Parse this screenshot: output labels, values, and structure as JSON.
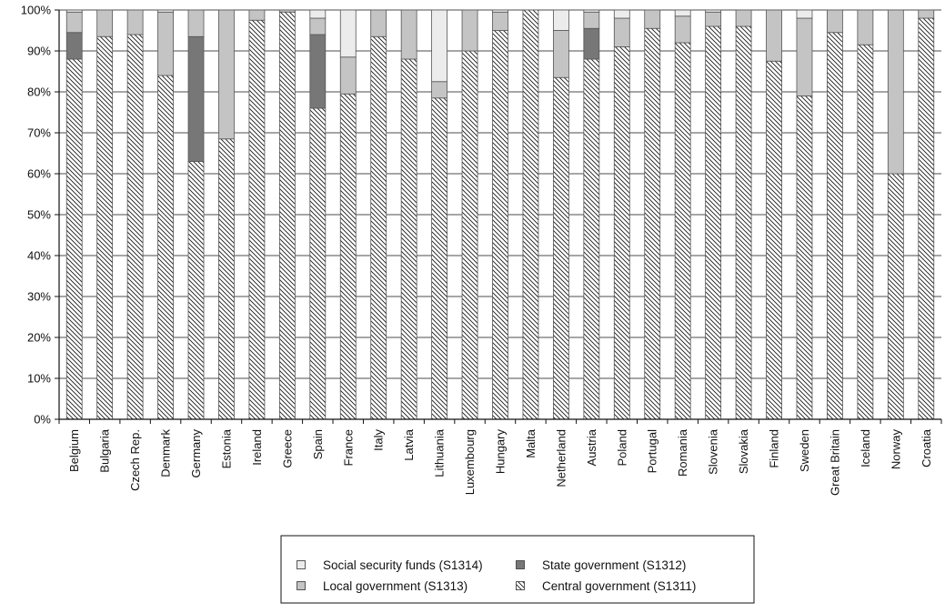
{
  "chart_data": {
    "type": "bar",
    "stacked": true,
    "percent": true,
    "ylim": [
      0,
      100
    ],
    "yticks": [
      "0%",
      "10%",
      "20%",
      "30%",
      "40%",
      "50%",
      "60%",
      "70%",
      "80%",
      "90%",
      "100%"
    ],
    "grid": true,
    "legend_position": "bottom",
    "categories": [
      "Belgium",
      "Bulgaria",
      "Czech Rep.",
      "Denmark",
      "Germany",
      "Estonia",
      "Ireland",
      "Greece",
      "Spain",
      "France",
      "Italy",
      "Latvia",
      "Lithuania",
      "Luxembourg",
      "Hungary",
      "Malta",
      "Netherland",
      "Austria",
      "Poland",
      "Portugal",
      "Romania",
      "Slovenia",
      "Slovakia",
      "Finland",
      "Sweden",
      "Great Britain",
      "Iceland",
      "Norway",
      "Croatia"
    ],
    "series": [
      {
        "name": "Central government (S1311)",
        "key": "central",
        "values": [
          88,
          93.5,
          94,
          84,
          63,
          68.5,
          97.5,
          99.5,
          76,
          79.5,
          93.5,
          88,
          78.5,
          90,
          95,
          100,
          83.5,
          88,
          91,
          95.5,
          92,
          96,
          96,
          87.5,
          79,
          94.5,
          91.5,
          60,
          98
        ]
      },
      {
        "name": "State government (S1312)",
        "key": "state",
        "values": [
          6.5,
          0,
          0,
          0,
          30.5,
          0,
          0,
          0,
          18,
          0,
          0,
          0,
          0,
          0,
          0,
          0,
          0,
          7.5,
          0,
          0,
          0,
          0,
          0,
          0,
          0,
          0,
          0,
          0,
          0
        ]
      },
      {
        "name": "Local government (S1313)",
        "key": "local",
        "values": [
          5,
          6.5,
          6,
          15.5,
          6.5,
          31.5,
          2.5,
          0.5,
          4,
          9,
          6.5,
          12,
          4,
          10,
          4.5,
          0,
          11.5,
          4,
          7,
          4.5,
          6.5,
          3.5,
          4,
          12.5,
          19,
          5.5,
          8.5,
          40,
          2
        ]
      },
      {
        "name": "Social security funds (S1314)",
        "key": "social",
        "values": [
          0.5,
          0,
          0,
          0.5,
          0,
          0,
          0,
          0,
          2,
          11.5,
          0,
          0,
          17.5,
          0,
          0.5,
          0,
          5,
          0.5,
          2,
          0,
          1.5,
          0.5,
          0,
          0,
          2,
          0,
          0,
          0,
          0
        ]
      }
    ],
    "legend": [
      {
        "key": "social",
        "label": "Social security funds (S1314)"
      },
      {
        "key": "state",
        "label": "State government (S1312)"
      },
      {
        "key": "local",
        "label": "Local government (S1313)"
      },
      {
        "key": "central",
        "label": "Central government (S1311)"
      }
    ],
    "colors": {
      "central": "#ffffff",
      "central_hatch": "#1a1a1a",
      "state": "#777777",
      "local": "#c4c4c4",
      "social": "#ececec",
      "outline": "#555555"
    }
  }
}
